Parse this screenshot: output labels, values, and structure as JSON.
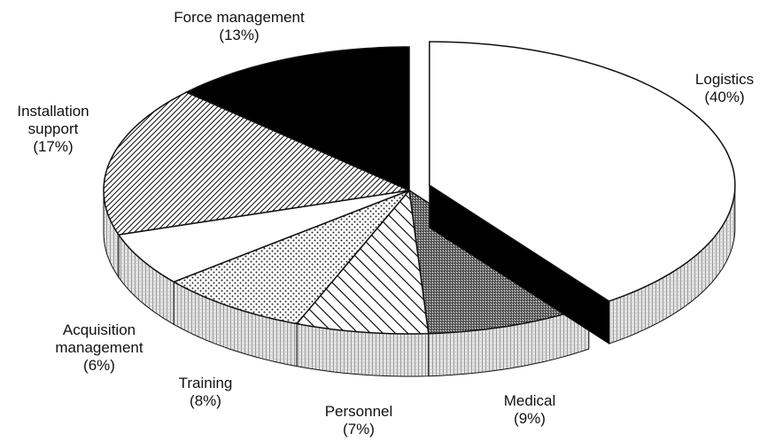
{
  "chart_data": {
    "type": "pie",
    "categories": [
      "Logistics",
      "Medical",
      "Personnel",
      "Training",
      "Acquisition management",
      "Installation support",
      "Force management"
    ],
    "values": [
      40,
      9,
      7,
      8,
      6,
      17,
      13
    ],
    "value_labels": [
      "(40%)",
      "(9%)",
      "(7%)",
      "(8%)",
      "(6%)",
      "(17%)",
      "(13%)"
    ],
    "explode": "Logistics"
  }
}
